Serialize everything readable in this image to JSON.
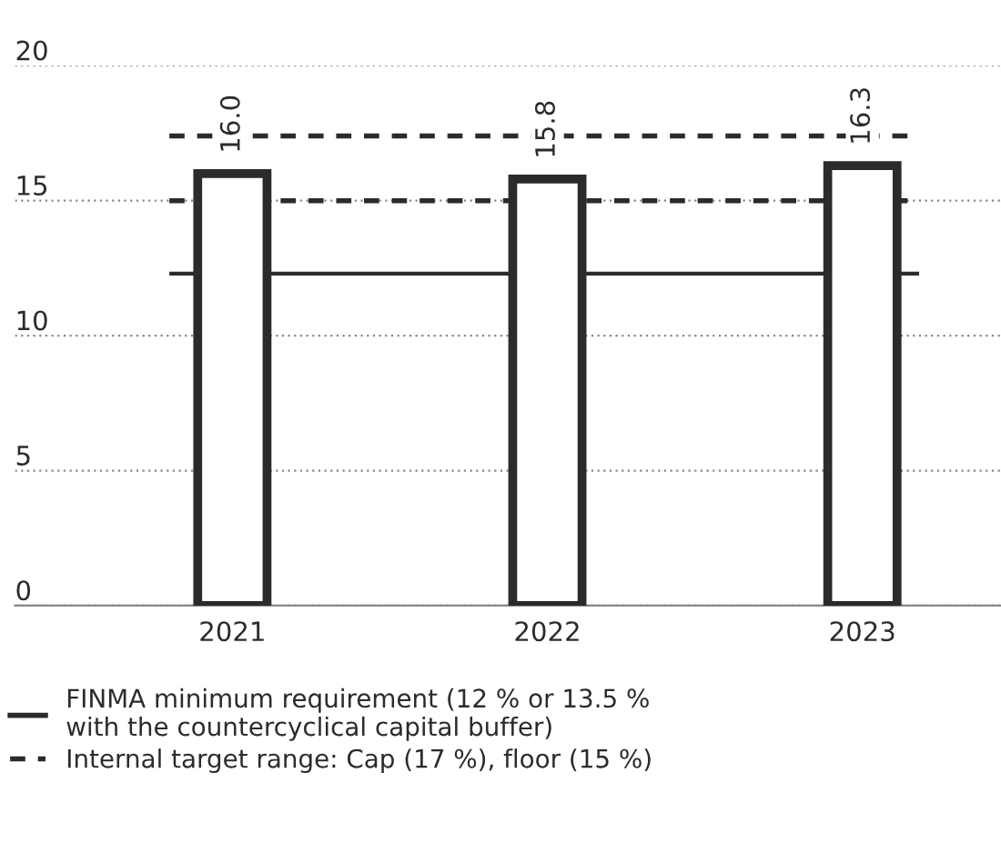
{
  "chart_data": {
    "type": "bar",
    "categories": [
      "2021",
      "2022",
      "2023"
    ],
    "values": [
      16.0,
      15.8,
      16.3
    ],
    "value_labels": [
      "16.0",
      "15.8",
      "16.3"
    ],
    "color": "#2b2b2b",
    "ylim": [
      0,
      20
    ],
    "yticks": [
      0,
      5,
      10,
      15,
      20
    ],
    "grid": "y",
    "legend": "bottom",
    "ref_lines": [
      {
        "axis": "y",
        "value": 12.3,
        "label": "FINMA minimum requirement (12 % or 13.5 %\nwith the countercyclical capital buffer)",
        "line_style": "solid",
        "color": "#2b2b2b"
      },
      {
        "axis": "y",
        "value": 17.4,
        "label": "Internal target range: Cap (17 %), floor (15 %)",
        "line_style": "dashed",
        "color": "#2b2b2b"
      },
      {
        "axis": "y",
        "value": 15.0,
        "line_style": "dashed",
        "color": "#2b2b2b"
      }
    ]
  }
}
